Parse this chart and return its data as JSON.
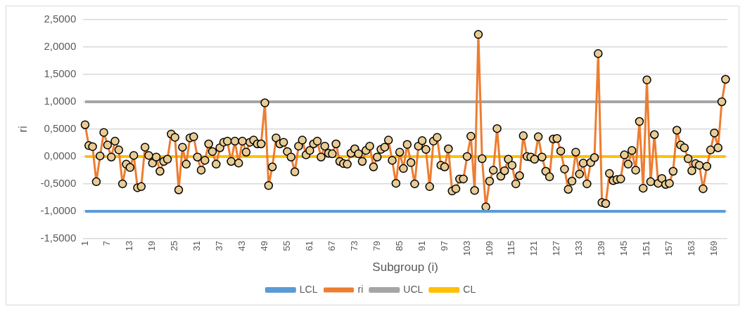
{
  "chart_data": {
    "type": "line",
    "xlabel": "Subgroup (i)",
    "ylabel": "ri",
    "categories": [
      "1",
      null,
      null,
      null,
      null,
      null,
      "7",
      null,
      null,
      null,
      null,
      null,
      "13",
      null,
      null,
      null,
      null,
      null,
      "19",
      null,
      null,
      null,
      null,
      null,
      "25",
      null,
      null,
      null,
      null,
      null,
      "31",
      null,
      null,
      null,
      null,
      null,
      "37",
      null,
      null,
      null,
      null,
      null,
      "43",
      null,
      null,
      null,
      null,
      null,
      "49",
      null,
      null,
      null,
      null,
      null,
      "55",
      null,
      null,
      null,
      null,
      null,
      "61",
      null,
      null,
      null,
      null,
      null,
      "67",
      null,
      null,
      null,
      null,
      null,
      "73",
      null,
      null,
      null,
      null,
      null,
      "79",
      null,
      null,
      null,
      null,
      null,
      "85",
      null,
      null,
      null,
      null,
      null,
      "91",
      null,
      null,
      null,
      null,
      null,
      "97",
      null,
      null,
      null,
      null,
      null,
      "103",
      null,
      null,
      null,
      null,
      null,
      "109",
      null,
      null,
      null,
      null,
      null,
      "115",
      null,
      null,
      null,
      null,
      null,
      "121",
      null,
      null,
      null,
      null,
      null,
      "127",
      null,
      null,
      null,
      null,
      null,
      "133",
      null,
      null,
      null,
      null,
      null,
      "139",
      null,
      null,
      null,
      null,
      null,
      "145",
      null,
      null,
      null,
      null,
      null,
      "151",
      null,
      null,
      null,
      null,
      null,
      "157",
      null,
      null,
      null,
      null,
      null,
      "163",
      null,
      null,
      null,
      null,
      null,
      "169",
      null,
      null,
      null
    ],
    "series": [
      {
        "name": "LCL",
        "color": "#5b9bd5",
        "marker": "none",
        "values": [
          -1,
          -1,
          -1,
          -1,
          -1,
          -1,
          -1,
          -1,
          -1,
          -1,
          -1,
          -1,
          -1,
          -1,
          -1,
          -1,
          -1,
          -1,
          -1,
          -1,
          -1,
          -1,
          -1,
          -1,
          -1,
          -1,
          -1,
          -1,
          -1,
          -1,
          -1,
          -1,
          -1,
          -1,
          -1,
          -1,
          -1,
          -1,
          -1,
          -1,
          -1,
          -1,
          -1,
          -1,
          -1,
          -1,
          -1,
          -1,
          -1,
          -1,
          -1,
          -1,
          -1,
          -1,
          -1,
          -1,
          -1,
          -1,
          -1,
          -1,
          -1,
          -1,
          -1,
          -1,
          -1,
          -1,
          -1,
          -1,
          -1,
          -1,
          -1,
          -1,
          -1,
          -1,
          -1,
          -1,
          -1,
          -1,
          -1,
          -1,
          -1,
          -1,
          -1,
          -1,
          -1,
          -1,
          -1,
          -1,
          -1,
          -1,
          -1,
          -1,
          -1,
          -1,
          -1,
          -1,
          -1,
          -1,
          -1,
          -1,
          -1,
          -1,
          -1,
          -1,
          -1,
          -1,
          -1,
          -1,
          -1,
          -1,
          -1,
          -1,
          -1,
          -1,
          -1,
          -1,
          -1,
          -1,
          -1,
          -1,
          -1,
          -1,
          -1,
          -1,
          -1,
          -1,
          -1,
          -1,
          -1,
          -1,
          -1,
          -1,
          -1,
          -1,
          -1,
          -1,
          -1,
          -1,
          -1,
          -1,
          -1,
          -1,
          -1,
          -1,
          -1,
          -1,
          -1,
          -1,
          -1,
          -1,
          -1,
          -1,
          -1,
          -1,
          -1,
          -1,
          -1,
          -1,
          -1,
          -1,
          -1,
          -1,
          -1,
          -1,
          -1,
          -1,
          -1,
          -1,
          -1,
          -1,
          -1,
          -1
        ]
      },
      {
        "name": "ri",
        "color": "#ed7d31",
        "marker": "circle",
        "values": [
          0.58,
          0.2,
          0.18,
          -0.46,
          0.01,
          0.44,
          0.21,
          -0.01,
          0.28,
          0.12,
          -0.5,
          -0.14,
          -0.2,
          0.02,
          -0.57,
          -0.55,
          0.17,
          0.02,
          -0.12,
          -0.01,
          -0.27,
          -0.09,
          -0.05,
          0.41,
          0.35,
          -0.61,
          0.17,
          -0.14,
          0.34,
          0.36,
          -0.01,
          -0.25,
          -0.07,
          0.23,
          0.09,
          -0.14,
          0.16,
          0.26,
          0.28,
          -0.09,
          0.28,
          -0.12,
          0.28,
          0.08,
          0.26,
          0.3,
          0.23,
          0.23,
          0.98,
          -0.53,
          -0.19,
          0.34,
          0.23,
          0.26,
          0.09,
          -0.01,
          -0.28,
          0.19,
          0.3,
          0.03,
          0.11,
          0.23,
          0.28,
          -0.01,
          0.19,
          0.06,
          0.05,
          0.23,
          -0.09,
          -0.13,
          -0.14,
          0.06,
          0.14,
          0.05,
          -0.09,
          0.11,
          0.19,
          -0.19,
          -0.01,
          0.13,
          0.17,
          0.3,
          -0.07,
          -0.49,
          0.08,
          -0.22,
          0.22,
          -0.11,
          -0.5,
          0.19,
          0.29,
          0.13,
          -0.55,
          0.28,
          0.35,
          -0.16,
          -0.19,
          0.14,
          -0.63,
          -0.59,
          -0.41,
          -0.41,
          0,
          0.37,
          -0.62,
          2.23,
          -0.04,
          -0.92,
          -0.45,
          -0.25,
          0.51,
          -0.36,
          -0.26,
          -0.05,
          -0.16,
          -0.5,
          -0.35,
          0.38,
          0,
          -0.01,
          -0.05,
          0.36,
          -0.01,
          -0.27,
          -0.37,
          0.32,
          0.33,
          0.1,
          -0.23,
          -0.6,
          -0.45,
          0.08,
          -0.32,
          -0.12,
          -0.5,
          -0.11,
          -0.02,
          1.88,
          -0.84,
          -0.86,
          -0.31,
          -0.44,
          -0.42,
          -0.41,
          0.03,
          -0.14,
          0.11,
          -0.25,
          0.64,
          -0.58,
          1.4,
          -0.46,
          0.4,
          -0.49,
          -0.4,
          -0.51,
          -0.49,
          -0.27,
          0.48,
          0.21,
          0.16,
          -0.04,
          -0.26,
          -0.13,
          -0.16,
          -0.59,
          -0.18,
          0.12,
          0.43,
          0.16,
          1,
          1.41
        ]
      },
      {
        "name": "UCL",
        "color": "#a5a5a5",
        "marker": "none",
        "values": [
          1,
          1,
          1,
          1,
          1,
          1,
          1,
          1,
          1,
          1,
          1,
          1,
          1,
          1,
          1,
          1,
          1,
          1,
          1,
          1,
          1,
          1,
          1,
          1,
          1,
          1,
          1,
          1,
          1,
          1,
          1,
          1,
          1,
          1,
          1,
          1,
          1,
          1,
          1,
          1,
          1,
          1,
          1,
          1,
          1,
          1,
          1,
          1,
          1,
          1,
          1,
          1,
          1,
          1,
          1,
          1,
          1,
          1,
          1,
          1,
          1,
          1,
          1,
          1,
          1,
          1,
          1,
          1,
          1,
          1,
          1,
          1,
          1,
          1,
          1,
          1,
          1,
          1,
          1,
          1,
          1,
          1,
          1,
          1,
          1,
          1,
          1,
          1,
          1,
          1,
          1,
          1,
          1,
          1,
          1,
          1,
          1,
          1,
          1,
          1,
          1,
          1,
          1,
          1,
          1,
          1,
          1,
          1,
          1,
          1,
          1,
          1,
          1,
          1,
          1,
          1,
          1,
          1,
          1,
          1,
          1,
          1,
          1,
          1,
          1,
          1,
          1,
          1,
          1,
          1,
          1,
          1,
          1,
          1,
          1,
          1,
          1,
          1,
          1,
          1,
          1,
          1,
          1,
          1,
          1,
          1,
          1,
          1,
          1,
          1,
          1,
          1,
          1,
          1,
          1,
          1,
          1,
          1,
          1,
          1,
          1,
          1,
          1,
          1,
          1,
          1,
          1,
          1,
          1,
          1,
          1,
          1
        ]
      },
      {
        "name": "CL",
        "color": "#ffc000",
        "marker": "none",
        "values": [
          0,
          0,
          0,
          0,
          0,
          0,
          0,
          0,
          0,
          0,
          0,
          0,
          0,
          0,
          0,
          0,
          0,
          0,
          0,
          0,
          0,
          0,
          0,
          0,
          0,
          0,
          0,
          0,
          0,
          0,
          0,
          0,
          0,
          0,
          0,
          0,
          0,
          0,
          0,
          0,
          0,
          0,
          0,
          0,
          0,
          0,
          0,
          0,
          0,
          0,
          0,
          0,
          0,
          0,
          0,
          0,
          0,
          0,
          0,
          0,
          0,
          0,
          0,
          0,
          0,
          0,
          0,
          0,
          0,
          0,
          0,
          0,
          0,
          0,
          0,
          0,
          0,
          0,
          0,
          0,
          0,
          0,
          0,
          0,
          0,
          0,
          0,
          0,
          0,
          0,
          0,
          0,
          0,
          0,
          0,
          0,
          0,
          0,
          0,
          0,
          0,
          0,
          0,
          0,
          0,
          0,
          0,
          0,
          0,
          0,
          0,
          0,
          0,
          0,
          0,
          0,
          0,
          0,
          0,
          0,
          0,
          0,
          0,
          0,
          0,
          0,
          0,
          0,
          0,
          0,
          0,
          0,
          0,
          0,
          0,
          0,
          0,
          0,
          0,
          0,
          0,
          0,
          0,
          0,
          0,
          0,
          0,
          0,
          0,
          0,
          0,
          0,
          0,
          0,
          0,
          0,
          0,
          0,
          0,
          0,
          0,
          0,
          0,
          0,
          0,
          0,
          0,
          0,
          0,
          0,
          0,
          0
        ]
      }
    ],
    "ylim": [
      -1.5,
      2.5
    ],
    "yticks": [
      {
        "value": -1.5,
        "label": "-1,5000"
      },
      {
        "value": -1,
        "label": "-1,0000"
      },
      {
        "value": -0.5,
        "label": "-0,5000"
      },
      {
        "value": 0,
        "label": "0,0000"
      },
      {
        "value": 0.5,
        "label": "0,5000"
      },
      {
        "value": 1,
        "label": "1,0000"
      },
      {
        "value": 1.5,
        "label": "1,5000"
      },
      {
        "value": 2,
        "label": "2,0000"
      },
      {
        "value": 2.5,
        "label": "2,5000"
      }
    ],
    "grid": "y",
    "legend": "bottom"
  }
}
